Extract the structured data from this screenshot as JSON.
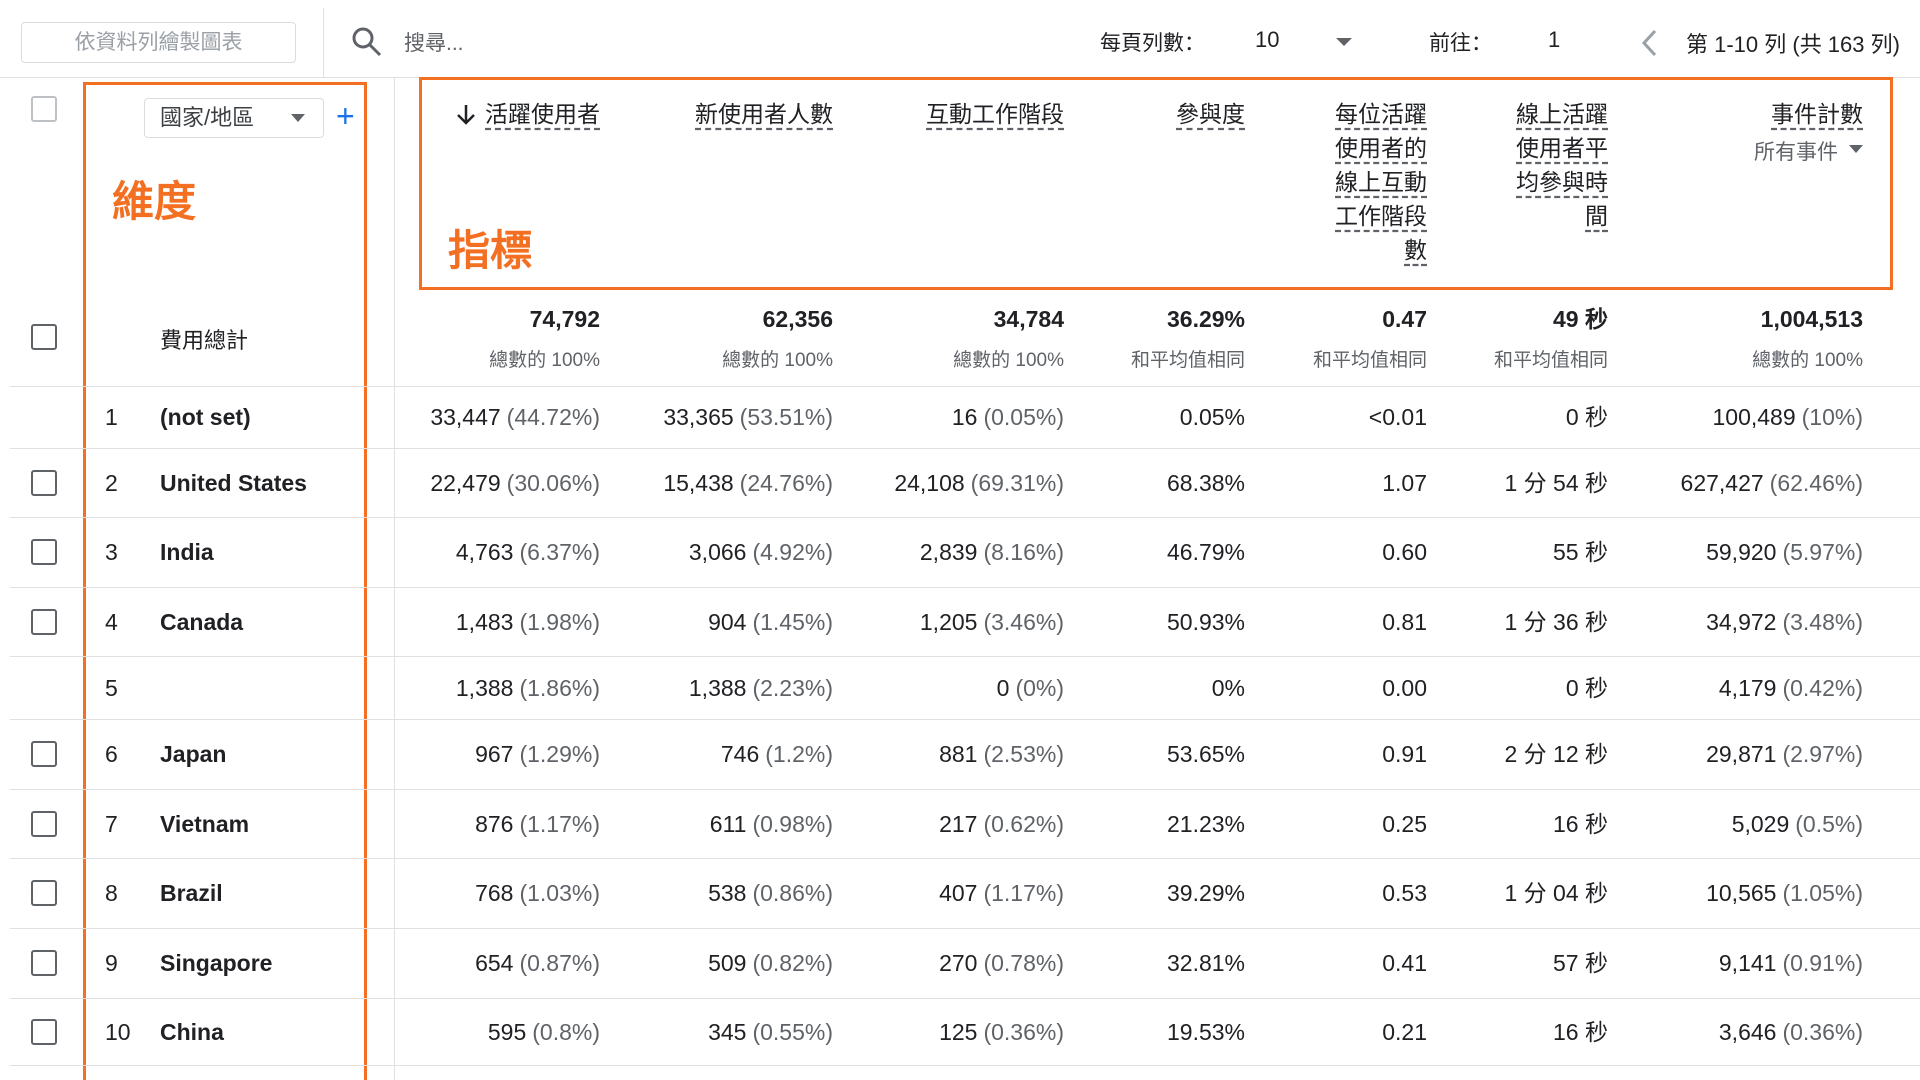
{
  "toolbar": {
    "chart_button": "依資料列繪製圖表",
    "search_placeholder": "搜尋...",
    "rows_per_page_label": "每頁列數：",
    "rows_per_page": "10",
    "goto_label": "前往：",
    "goto_value": "1",
    "range": "第 1-10 列 (共 163 列)"
  },
  "annotations": {
    "dimension": "維度",
    "metrics": "指標"
  },
  "dimension_header": "國家/地區",
  "columns": [
    {
      "title": "活躍使用者",
      "sorted": true
    },
    {
      "title": "新使用者人數"
    },
    {
      "title": "互動工作階段"
    },
    {
      "title": "參與度"
    },
    {
      "title": "每位活躍使用者的線上互動工作階段數"
    },
    {
      "title": "線上活躍使用者平均參與時間"
    },
    {
      "title": "事件計數",
      "subtitle": "所有事件"
    }
  ],
  "totals": {
    "label": "費用總計",
    "cells": [
      [
        "74,792",
        "總數的 100%"
      ],
      [
        "62,356",
        "總數的 100%"
      ],
      [
        "34,784",
        "總數的 100%"
      ],
      [
        "36.29%",
        "和平均值相同"
      ],
      [
        "0.47",
        "和平均值相同"
      ],
      [
        "49 秒",
        "和平均值相同"
      ],
      [
        "1,004,513",
        "總數的 100%"
      ]
    ]
  },
  "rows": [
    {
      "index": "1",
      "name": "(not set)",
      "selectable": false,
      "cells": [
        [
          "33,447",
          "(44.72%)"
        ],
        [
          "33,365",
          "(53.51%)"
        ],
        [
          "16",
          "(0.05%)"
        ],
        [
          "0.05%"
        ],
        [
          "<0.01"
        ],
        [
          "0 秒"
        ],
        [
          "100,489",
          "(10%)"
        ]
      ]
    },
    {
      "index": "2",
      "name": "United States",
      "selectable": true,
      "cells": [
        [
          "22,479",
          "(30.06%)"
        ],
        [
          "15,438",
          "(24.76%)"
        ],
        [
          "24,108",
          "(69.31%)"
        ],
        [
          "68.38%"
        ],
        [
          "1.07"
        ],
        [
          "1 分 54 秒"
        ],
        [
          "627,427",
          "(62.46%)"
        ]
      ]
    },
    {
      "index": "3",
      "name": "India",
      "selectable": true,
      "cells": [
        [
          "4,763",
          "(6.37%)"
        ],
        [
          "3,066",
          "(4.92%)"
        ],
        [
          "2,839",
          "(8.16%)"
        ],
        [
          "46.79%"
        ],
        [
          "0.60"
        ],
        [
          "55 秒"
        ],
        [
          "59,920",
          "(5.97%)"
        ]
      ]
    },
    {
      "index": "4",
      "name": "Canada",
      "selectable": true,
      "cells": [
        [
          "1,483",
          "(1.98%)"
        ],
        [
          "904",
          "(1.45%)"
        ],
        [
          "1,205",
          "(3.46%)"
        ],
        [
          "50.93%"
        ],
        [
          "0.81"
        ],
        [
          "1 分 36 秒"
        ],
        [
          "34,972",
          "(3.48%)"
        ]
      ]
    },
    {
      "index": "5",
      "name": null,
      "selectable": false,
      "cells": [
        [
          "1,388",
          "(1.86%)"
        ],
        [
          "1,388",
          "(2.23%)"
        ],
        [
          "0",
          "(0%)"
        ],
        [
          "0%"
        ],
        [
          "0.00"
        ],
        [
          "0 秒"
        ],
        [
          "4,179",
          "(0.42%)"
        ]
      ]
    },
    {
      "index": "6",
      "name": "Japan",
      "selectable": true,
      "cells": [
        [
          "967",
          "(1.29%)"
        ],
        [
          "746",
          "(1.2%)"
        ],
        [
          "881",
          "(2.53%)"
        ],
        [
          "53.65%"
        ],
        [
          "0.91"
        ],
        [
          "2 分 12 秒"
        ],
        [
          "29,871",
          "(2.97%)"
        ]
      ]
    },
    {
      "index": "7",
      "name": "Vietnam",
      "selectable": true,
      "cells": [
        [
          "876",
          "(1.17%)"
        ],
        [
          "611",
          "(0.98%)"
        ],
        [
          "217",
          "(0.62%)"
        ],
        [
          "21.23%"
        ],
        [
          "0.25"
        ],
        [
          "16 秒"
        ],
        [
          "5,029",
          "(0.5%)"
        ]
      ]
    },
    {
      "index": "8",
      "name": "Brazil",
      "selectable": true,
      "cells": [
        [
          "768",
          "(1.03%)"
        ],
        [
          "538",
          "(0.86%)"
        ],
        [
          "407",
          "(1.17%)"
        ],
        [
          "39.29%"
        ],
        [
          "0.53"
        ],
        [
          "1 分 04 秒"
        ],
        [
          "10,565",
          "(1.05%)"
        ]
      ]
    },
    {
      "index": "9",
      "name": "Singapore",
      "selectable": true,
      "cells": [
        [
          "654",
          "(0.87%)"
        ],
        [
          "509",
          "(0.82%)"
        ],
        [
          "270",
          "(0.78%)"
        ],
        [
          "32.81%"
        ],
        [
          "0.41"
        ],
        [
          "57 秒"
        ],
        [
          "9,141",
          "(0.91%)"
        ]
      ]
    },
    {
      "index": "10",
      "name": "China",
      "selectable": true,
      "cells": [
        [
          "595",
          "(0.8%)"
        ],
        [
          "345",
          "(0.55%)"
        ],
        [
          "125",
          "(0.36%)"
        ],
        [
          "19.53%"
        ],
        [
          "0.21"
        ],
        [
          "16 秒"
        ],
        [
          "3,646",
          "(0.36%)"
        ]
      ]
    }
  ]
}
